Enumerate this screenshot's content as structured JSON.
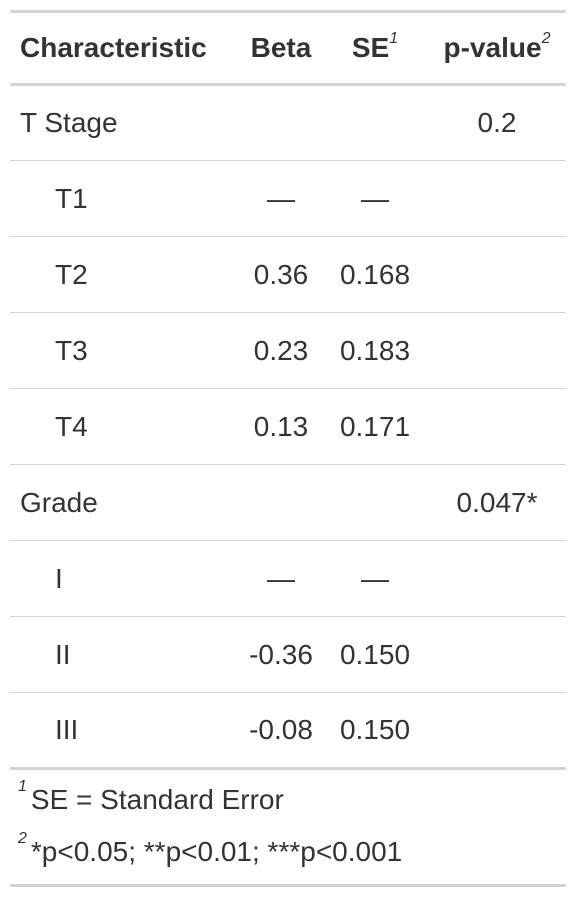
{
  "header": {
    "characteristic": "Characteristic",
    "beta": "Beta",
    "se": "SE",
    "se_mark": "1",
    "pvalue": "p-value",
    "pvalue_mark": "2"
  },
  "rows": [
    {
      "label": "T Stage",
      "beta": "",
      "se": "",
      "p": "0.2"
    },
    {
      "label": "T1",
      "beta": "—",
      "se": "—",
      "p": ""
    },
    {
      "label": "T2",
      "beta": "0.36",
      "se": "0.168",
      "p": ""
    },
    {
      "label": "T3",
      "beta": "0.23",
      "se": "0.183",
      "p": ""
    },
    {
      "label": "T4",
      "beta": "0.13",
      "se": "0.171",
      "p": ""
    },
    {
      "label": "Grade",
      "beta": "",
      "se": "",
      "p": "0.047*"
    },
    {
      "label": "I",
      "beta": "—",
      "se": "—",
      "p": ""
    },
    {
      "label": "II",
      "beta": "-0.36",
      "se": "0.150",
      "p": ""
    },
    {
      "label": "III",
      "beta": "-0.08",
      "se": "0.150",
      "p": ""
    }
  ],
  "footnotes": [
    {
      "mark": "1",
      "text": "SE = Standard Error"
    },
    {
      "mark": "2",
      "text": "*p<0.05; **p<0.01; ***p<0.001"
    }
  ]
}
